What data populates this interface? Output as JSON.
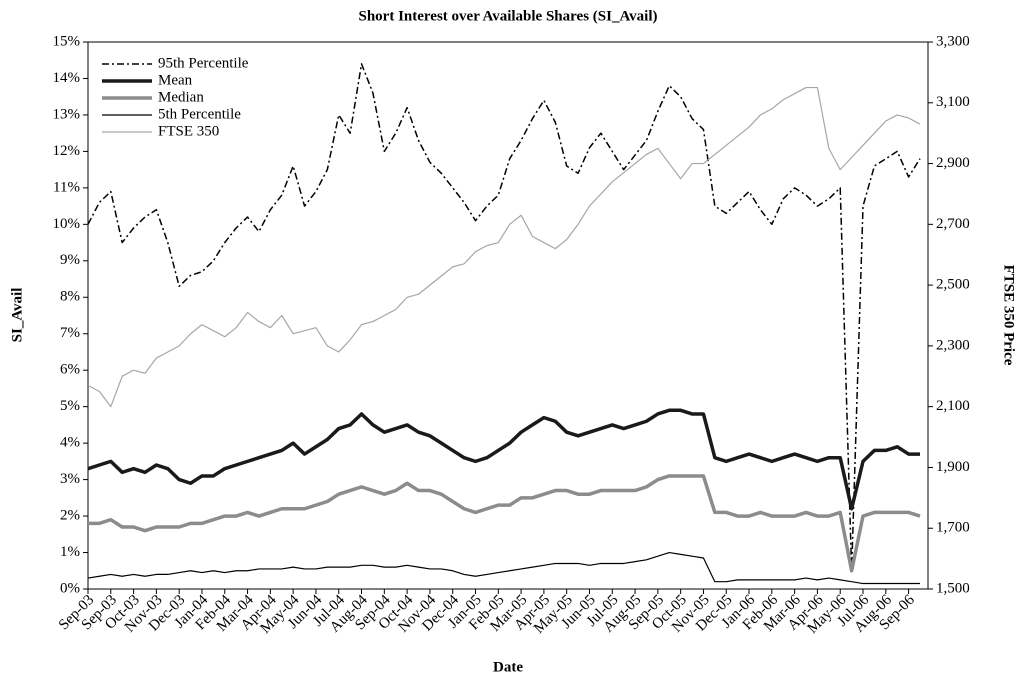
{
  "chart_data": {
    "type": "line",
    "title": "Short Interest over Available Shares (SI_Avail)",
    "xlabel": "Date",
    "ylabel": "SI_Avail",
    "y2label": "FTSE 350 Price",
    "legend": "upper left",
    "categories": [
      "Sep-03",
      null,
      "Sep-03",
      null,
      "Oct-03",
      null,
      "Nov-03",
      null,
      "Dec-03",
      null,
      "Jan-04",
      null,
      "Feb-04",
      null,
      "Mar-04",
      null,
      "Apr-04",
      null,
      "May-04",
      null,
      "Jun-04",
      null,
      "Jul-04",
      null,
      "Aug-04",
      null,
      "Sep-04",
      null,
      "Oct-04",
      null,
      "Nov-04",
      null,
      "Dec-04",
      null,
      "Jan-05",
      null,
      "Feb-05",
      null,
      "Mar-05",
      null,
      "Apr-05",
      null,
      "May-05",
      null,
      "Jun-05",
      null,
      "Jul-05",
      null,
      "Aug-05",
      null,
      "Sep-05",
      null,
      "Oct-05",
      null,
      "Nov-05",
      null,
      "Dec-05",
      null,
      "Jan-06",
      null,
      "Feb-06",
      null,
      "Mar-06",
      null,
      "Apr-06",
      null,
      "May-06",
      null,
      "Jul-06",
      null,
      "Aug-06",
      null,
      "Sep-06",
      null
    ],
    "ylim": [
      0,
      15
    ],
    "yticks": [
      {
        "value": 0,
        "label": "0%"
      },
      {
        "value": 1,
        "label": "1%"
      },
      {
        "value": 2,
        "label": "2%"
      },
      {
        "value": 3,
        "label": "3%"
      },
      {
        "value": 4,
        "label": "4%"
      },
      {
        "value": 5,
        "label": "5%"
      },
      {
        "value": 6,
        "label": "6%"
      },
      {
        "value": 7,
        "label": "7%"
      },
      {
        "value": 8,
        "label": "8%"
      },
      {
        "value": 9,
        "label": "9%"
      },
      {
        "value": 10,
        "label": "10%"
      },
      {
        "value": 11,
        "label": "11%"
      },
      {
        "value": 12,
        "label": "12%"
      },
      {
        "value": 13,
        "label": "13%"
      },
      {
        "value": 14,
        "label": "14%"
      },
      {
        "value": 15,
        "label": "15%"
      }
    ],
    "y2lim": [
      1500,
      3300
    ],
    "y2ticks": [
      {
        "value": 1500,
        "label": "1,500"
      },
      {
        "value": 1700,
        "label": "1,700"
      },
      {
        "value": 1900,
        "label": "1,900"
      },
      {
        "value": 2100,
        "label": "2,100"
      },
      {
        "value": 2300,
        "label": "2,300"
      },
      {
        "value": 2500,
        "label": "2,500"
      },
      {
        "value": 2700,
        "label": "2,700"
      },
      {
        "value": 2900,
        "label": "2,900"
      },
      {
        "value": 3100,
        "label": "3,100"
      },
      {
        "value": 3300,
        "label": "3,300"
      }
    ],
    "series": [
      {
        "name": "95th Percentile",
        "color": "#000000",
        "linewidth": 1.5,
        "linestyle": "dashdot",
        "values": [
          10.0,
          10.6,
          10.9,
          9.5,
          9.9,
          10.2,
          10.4,
          9.5,
          8.3,
          8.6,
          8.7,
          9.0,
          9.5,
          9.9,
          10.2,
          9.8,
          10.4,
          10.8,
          11.6,
          10.5,
          10.9,
          11.5,
          13.0,
          12.5,
          14.4,
          13.6,
          12.0,
          12.5,
          13.2,
          12.3,
          11.7,
          11.4,
          11.0,
          10.6,
          10.1,
          10.5,
          10.8,
          11.8,
          12.3,
          12.9,
          13.4,
          12.8,
          11.6,
          11.4,
          12.1,
          12.5,
          12.0,
          11.5,
          11.9,
          12.3,
          13.1,
          13.8,
          13.5,
          12.9,
          12.6,
          10.5,
          10.3,
          10.6,
          10.9,
          10.4,
          10.0,
          10.7,
          11.0,
          10.8,
          10.5,
          10.7,
          11.0,
          0.5,
          10.5,
          11.6,
          11.8,
          12.0,
          11.3,
          11.8
        ]
      },
      {
        "name": "Mean",
        "color": "#1a1a1a",
        "linewidth": 3.5,
        "linestyle": "solid",
        "values": [
          3.3,
          3.4,
          3.5,
          3.2,
          3.3,
          3.2,
          3.4,
          3.3,
          3.0,
          2.9,
          3.1,
          3.1,
          3.3,
          3.4,
          3.5,
          3.6,
          3.7,
          3.8,
          4.0,
          3.7,
          3.9,
          4.1,
          4.4,
          4.5,
          4.8,
          4.5,
          4.3,
          4.4,
          4.5,
          4.3,
          4.2,
          4.0,
          3.8,
          3.6,
          3.5,
          3.6,
          3.8,
          4.0,
          4.3,
          4.5,
          4.7,
          4.6,
          4.3,
          4.2,
          4.3,
          4.4,
          4.5,
          4.4,
          4.5,
          4.6,
          4.8,
          4.9,
          4.9,
          4.8,
          4.8,
          3.6,
          3.5,
          3.6,
          3.7,
          3.6,
          3.5,
          3.6,
          3.7,
          3.6,
          3.5,
          3.6,
          3.6,
          2.2,
          3.5,
          3.8,
          3.8,
          3.9,
          3.7,
          3.7
        ]
      },
      {
        "name": "Median",
        "color": "#8c8c8c",
        "linewidth": 3.5,
        "linestyle": "solid",
        "values": [
          1.8,
          1.8,
          1.9,
          1.7,
          1.7,
          1.6,
          1.7,
          1.7,
          1.7,
          1.8,
          1.8,
          1.9,
          2.0,
          2.0,
          2.1,
          2.0,
          2.1,
          2.2,
          2.2,
          2.2,
          2.3,
          2.4,
          2.6,
          2.7,
          2.8,
          2.7,
          2.6,
          2.7,
          2.9,
          2.7,
          2.7,
          2.6,
          2.4,
          2.2,
          2.1,
          2.2,
          2.3,
          2.3,
          2.5,
          2.5,
          2.6,
          2.7,
          2.7,
          2.6,
          2.6,
          2.7,
          2.7,
          2.7,
          2.7,
          2.8,
          3.0,
          3.1,
          3.1,
          3.1,
          3.1,
          2.1,
          2.1,
          2.0,
          2.0,
          2.1,
          2.0,
          2.0,
          2.0,
          2.1,
          2.0,
          2.0,
          2.1,
          0.5,
          2.0,
          2.1,
          2.1,
          2.1,
          2.1,
          2.0
        ]
      },
      {
        "name": "5th Percentile",
        "color": "#000000",
        "linewidth": 1.2,
        "linestyle": "solid",
        "values": [
          0.3,
          0.35,
          0.4,
          0.35,
          0.4,
          0.35,
          0.4,
          0.4,
          0.45,
          0.5,
          0.45,
          0.5,
          0.45,
          0.5,
          0.5,
          0.55,
          0.55,
          0.55,
          0.6,
          0.55,
          0.55,
          0.6,
          0.6,
          0.6,
          0.65,
          0.65,
          0.6,
          0.6,
          0.65,
          0.6,
          0.55,
          0.55,
          0.5,
          0.4,
          0.35,
          0.4,
          0.45,
          0.5,
          0.55,
          0.6,
          0.65,
          0.7,
          0.7,
          0.7,
          0.65,
          0.7,
          0.7,
          0.7,
          0.75,
          0.8,
          0.9,
          1.0,
          0.95,
          0.9,
          0.85,
          0.2,
          0.2,
          0.25,
          0.25,
          0.25,
          0.25,
          0.25,
          0.25,
          0.3,
          0.25,
          0.3,
          0.25,
          0.2,
          0.15,
          0.15,
          0.15,
          0.15,
          0.15,
          0.15
        ]
      },
      {
        "name": "FTSE 350",
        "color": "#a6a6a6",
        "linewidth": 1.2,
        "linestyle": "solid",
        "axis": "y2",
        "values": [
          2170,
          2150,
          2100,
          2200,
          2220,
          2210,
          2260,
          2280,
          2300,
          2340,
          2370,
          2350,
          2330,
          2360,
          2410,
          2380,
          2360,
          2400,
          2340,
          2350,
          2360,
          2300,
          2280,
          2320,
          2370,
          2380,
          2400,
          2420,
          2460,
          2470,
          2500,
          2530,
          2560,
          2570,
          2610,
          2630,
          2640,
          2700,
          2730,
          2660,
          2640,
          2620,
          2650,
          2700,
          2760,
          2800,
          2840,
          2870,
          2900,
          2930,
          2950,
          2900,
          2850,
          2900,
          2900,
          2930,
          2960,
          2990,
          3020,
          3060,
          3080,
          3110,
          3130,
          3150,
          3150,
          2950,
          2880,
          2920,
          2960,
          3000,
          3040,
          3060,
          3050,
          3030
        ]
      }
    ]
  }
}
